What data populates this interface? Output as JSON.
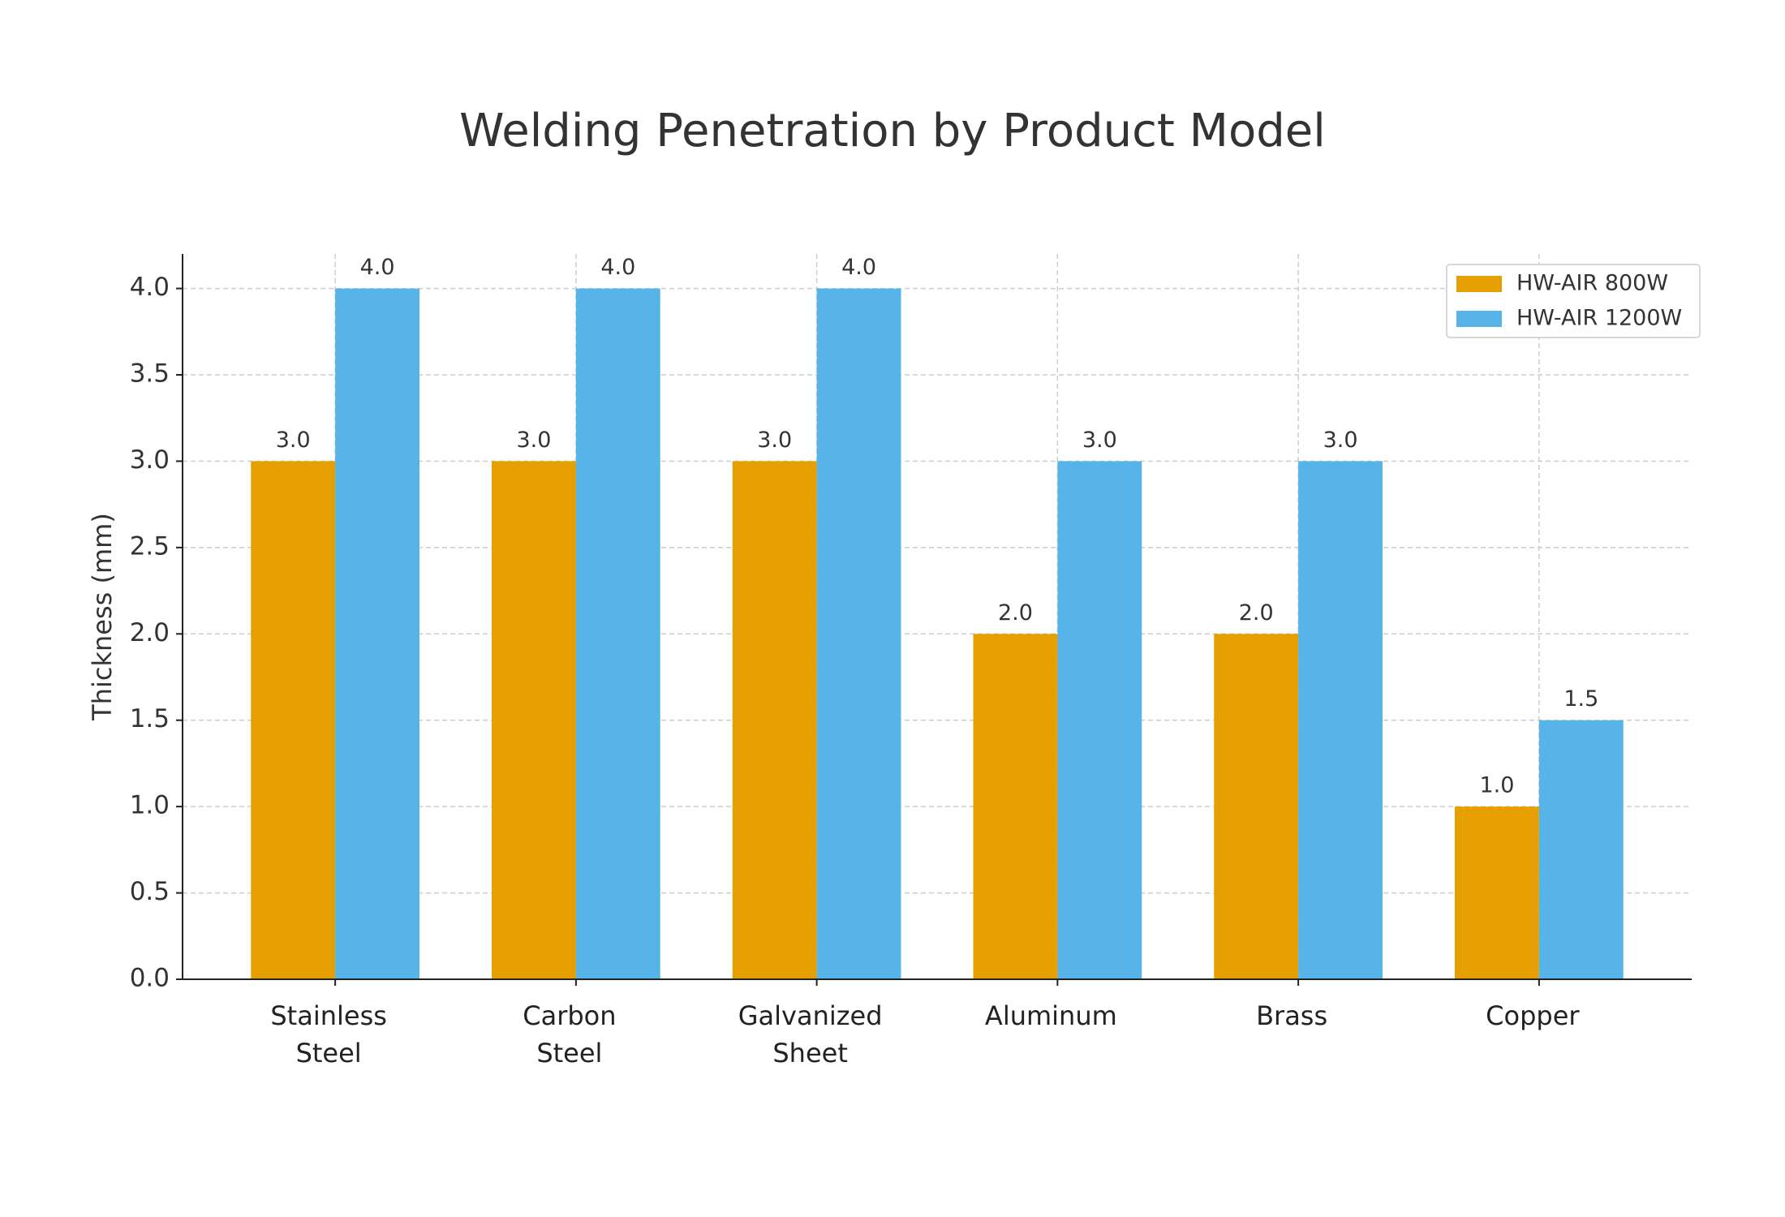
{
  "chart_data": {
    "type": "bar",
    "title": "Welding Penetration by Product Model",
    "y_label": "Thickness (mm)",
    "categories": [
      "Stainless Steel",
      "Carbon Steel",
      "Galvanized Sheet",
      "Aluminum",
      "Brass",
      "Copper"
    ],
    "series": [
      {
        "name": "HW-AIR 800W",
        "color": "#E69F00",
        "values": [
          3,
          3,
          3,
          2,
          2,
          1
        ],
        "value_labels": [
          "3.0",
          "3.0",
          "3.0",
          "2.0",
          "2.0",
          "1.0"
        ]
      },
      {
        "name": "HW-AIR 1200W",
        "color": "#56B4E9",
        "values": [
          4,
          4,
          4,
          3,
          3,
          1.5
        ],
        "value_labels": [
          "4.0",
          "4.0",
          "4.0",
          "3.0",
          "3.0",
          "1.5"
        ]
      }
    ],
    "ylim": [
      0,
      4.2
    ],
    "yticks": [
      {
        "value": 0,
        "label": "0.0"
      },
      {
        "value": 0.5,
        "label": "0.5"
      },
      {
        "value": 1,
        "label": "1.0"
      },
      {
        "value": 1.5,
        "label": "1.5"
      },
      {
        "value": 2,
        "label": "2.0"
      },
      {
        "value": 2.5,
        "label": "2.5"
      },
      {
        "value": 3,
        "label": "3.0"
      },
      {
        "value": 3.5,
        "label": "3.5"
      },
      {
        "value": 4,
        "label": "4.0"
      }
    ],
    "grid": true,
    "legend": "upper right"
  }
}
